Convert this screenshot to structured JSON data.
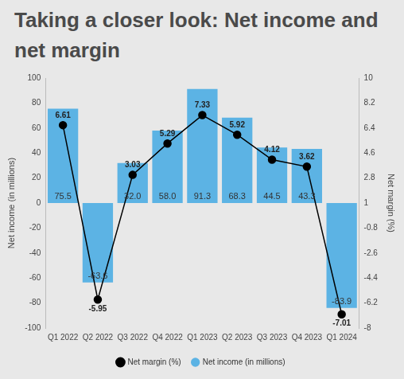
{
  "chart_data": {
    "type": "bar",
    "title": "Taking a closer look: Net income and net margin",
    "categories": [
      "Q1 2022",
      "Q2 2022",
      "Q3 2022",
      "Q4 2022",
      "Q1 2023",
      "Q2 2023",
      "Q3 2023",
      "Q4 2023",
      "Q1 2024"
    ],
    "y_label": "Net income (in millions)",
    "y2_label": "Net margin (%)",
    "ylim": [
      -100,
      100
    ],
    "yticks": [
      -100,
      -80,
      -60,
      -40,
      -20,
      0,
      20,
      40,
      60,
      80,
      100
    ],
    "y2lim": [
      -8,
      10
    ],
    "y2ticks": [
      -8,
      -6.2,
      -4.4,
      -2.6,
      -0.8,
      1,
      2.8,
      4.6,
      6.4,
      8.2,
      10
    ],
    "grid": false,
    "legend": "bottom",
    "data_labels": true,
    "series": [
      {
        "name": "Net income (in millions)",
        "type": "bar",
        "color": "#5cb3e4",
        "values": [
          75.5,
          -63.6,
          32.0,
          58.0,
          91.3,
          68.3,
          44.5,
          43.3,
          -83.9
        ],
        "value_labels": [
          "75.5",
          "-63.6",
          "32.0",
          "58.0",
          "91.3",
          "68.3",
          "44.5",
          "43.3",
          "-83.9"
        ]
      },
      {
        "name": "Net margin (%)",
        "type": "line",
        "color": "#000000",
        "marker": "circle",
        "line_style": "solid",
        "axis": "y2",
        "values": [
          6.61,
          -5.95,
          3.03,
          5.29,
          7.33,
          5.92,
          4.12,
          3.62,
          -7.01
        ]
      }
    ]
  }
}
